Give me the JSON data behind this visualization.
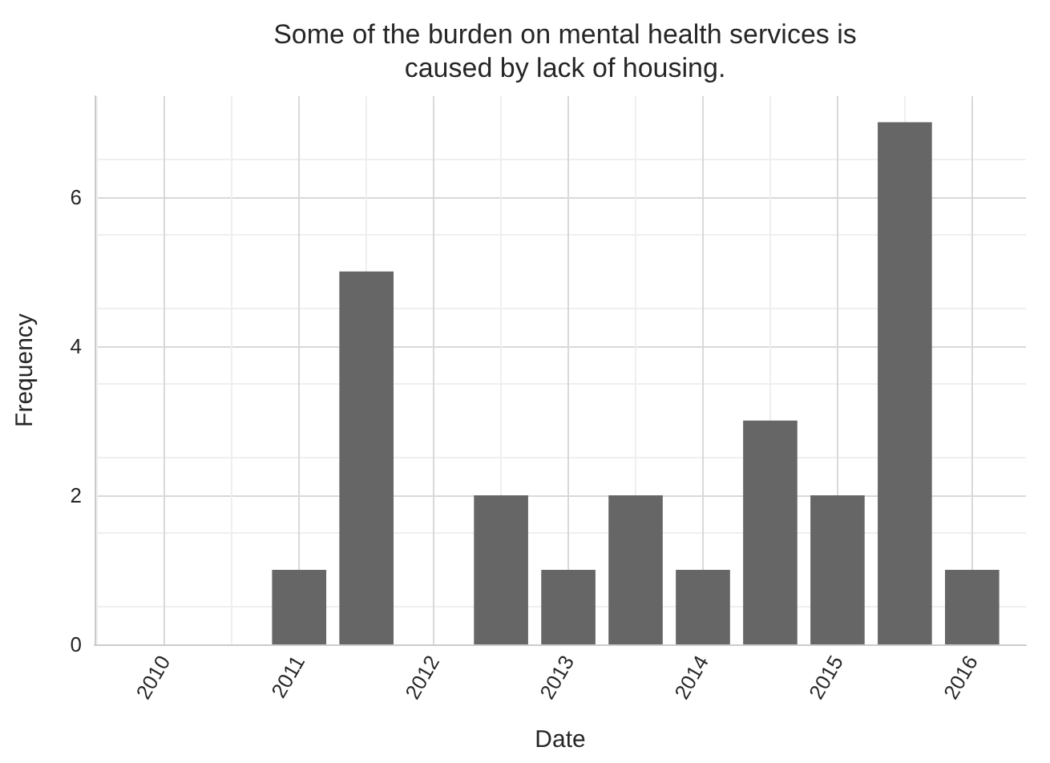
{
  "chart_data": {
    "type": "bar",
    "title": "Some of the burden on mental health services is\ncaused by lack of housing.",
    "xlabel": "Date",
    "ylabel": "Frequency",
    "x": [
      2011,
      2011.5,
      2012,
      2012.5,
      2013,
      2013.5,
      2014,
      2014.5,
      2015,
      2015.5,
      2016
    ],
    "values": [
      1,
      5,
      0,
      2,
      1,
      2,
      1,
      3,
      2,
      7,
      1
    ],
    "color": "#666666",
    "xlim": [
      2009.48,
      2016.4
    ],
    "xticks": [
      2010,
      2011,
      2012,
      2013,
      2014,
      2015,
      2016
    ],
    "ylim": [
      0,
      7.35
    ],
    "yticks": [
      0,
      2,
      4,
      6
    ],
    "grid": true
  }
}
